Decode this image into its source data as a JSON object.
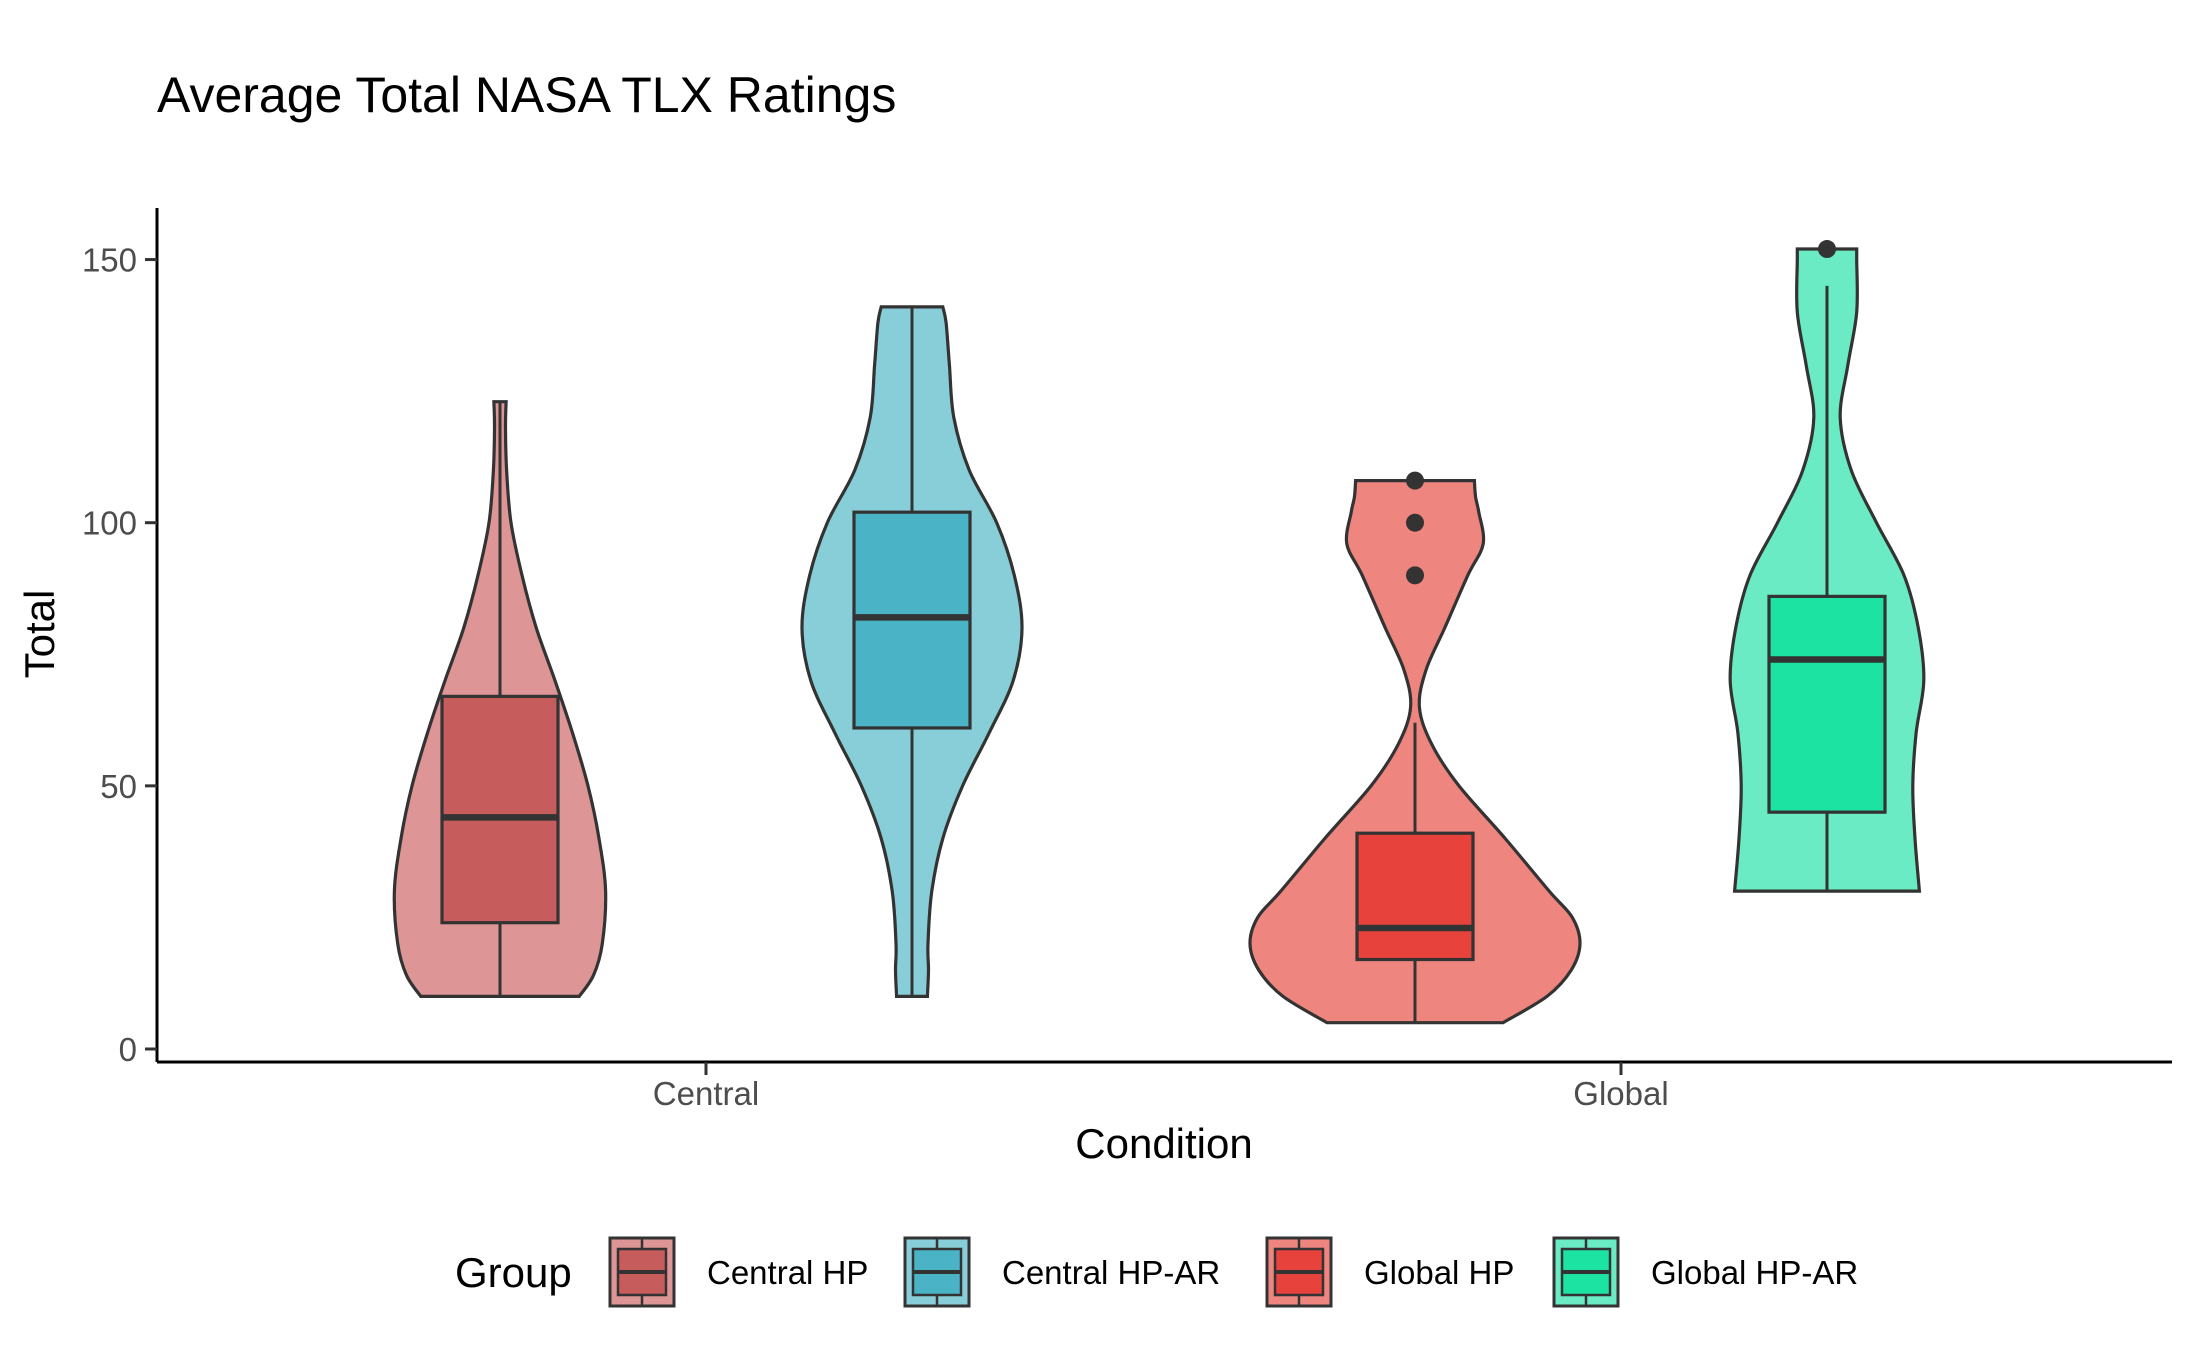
{
  "chart_data": {
    "type": "violin",
    "title": "Average Total NASA TLX Ratings",
    "xlabel": "Condition",
    "ylabel": "Total",
    "ylim": [
      0,
      160
    ],
    "yticks": [
      0,
      50,
      100,
      150
    ],
    "categories": [
      "Central",
      "Global"
    ],
    "grid": false,
    "legend": {
      "title": "Group",
      "position": "bottom",
      "entries": [
        "Central HP",
        "Central HP-AR",
        "Global HP",
        "Global HP-AR"
      ]
    },
    "series": [
      {
        "name": "Central HP",
        "category": "Central",
        "dodge": "left",
        "violin_color": "#dd9596",
        "box_color": "#c75c5c",
        "min": 10,
        "q1": 24,
        "median": 44,
        "q3": 67,
        "max": 123,
        "whisker_low": 10,
        "whisker_high": 123,
        "outliers": [],
        "density": [
          [
            10,
            0.72
          ],
          [
            14,
            0.85
          ],
          [
            20,
            0.93
          ],
          [
            30,
            0.96
          ],
          [
            40,
            0.9
          ],
          [
            50,
            0.8
          ],
          [
            60,
            0.66
          ],
          [
            70,
            0.5
          ],
          [
            80,
            0.33
          ],
          [
            90,
            0.2
          ],
          [
            100,
            0.1
          ],
          [
            110,
            0.06
          ],
          [
            118,
            0.05
          ],
          [
            123,
            0.055
          ]
        ]
      },
      {
        "name": "Central HP-AR",
        "category": "Central",
        "dodge": "right",
        "violin_color": "#88ced8",
        "box_color": "#4ab4c6",
        "min": 10,
        "q1": 61,
        "median": 82,
        "q3": 102,
        "max": 141,
        "whisker_low": 10,
        "whisker_high": 141,
        "outliers": [],
        "density": [
          [
            10,
            0.14
          ],
          [
            15,
            0.15
          ],
          [
            20,
            0.145
          ],
          [
            30,
            0.18
          ],
          [
            40,
            0.28
          ],
          [
            50,
            0.46
          ],
          [
            60,
            0.7
          ],
          [
            70,
            0.92
          ],
          [
            80,
            1.0
          ],
          [
            90,
            0.93
          ],
          [
            100,
            0.77
          ],
          [
            110,
            0.52
          ],
          [
            120,
            0.38
          ],
          [
            130,
            0.34
          ],
          [
            138,
            0.31
          ],
          [
            141,
            0.28
          ]
        ]
      },
      {
        "name": "Global HP",
        "category": "Global",
        "dodge": "left",
        "violin_color": "#ef857f",
        "box_color": "#e8423c",
        "min": 5,
        "q1": 17,
        "median": 23,
        "q3": 41,
        "max": 108,
        "whisker_low": 5,
        "whisker_high": 62,
        "outliers": [
          90,
          100,
          108
        ],
        "density": [
          [
            5,
            0.8
          ],
          [
            10,
            1.2
          ],
          [
            15,
            1.42
          ],
          [
            20,
            1.5
          ],
          [
            25,
            1.43
          ],
          [
            30,
            1.22
          ],
          [
            40,
            0.82
          ],
          [
            50,
            0.4
          ],
          [
            58,
            0.15
          ],
          [
            65,
            0.04
          ],
          [
            72,
            0.1
          ],
          [
            80,
            0.27
          ],
          [
            90,
            0.48
          ],
          [
            96,
            0.62
          ],
          [
            102,
            0.58
          ],
          [
            105,
            0.55
          ],
          [
            108,
            0.54
          ]
        ]
      },
      {
        "name": "Global HP-AR",
        "category": "Global",
        "dodge": "right",
        "violin_color": "#6aebc3",
        "box_color": "#1de3a2",
        "min": 30,
        "q1": 45,
        "median": 74,
        "q3": 86,
        "max": 152,
        "whisker_low": 30,
        "whisker_high": 145,
        "outliers": [
          152
        ],
        "density": [
          [
            30,
            0.84
          ],
          [
            40,
            0.8
          ],
          [
            50,
            0.78
          ],
          [
            60,
            0.81
          ],
          [
            70,
            0.88
          ],
          [
            80,
            0.83
          ],
          [
            90,
            0.7
          ],
          [
            100,
            0.45
          ],
          [
            110,
            0.22
          ],
          [
            120,
            0.12
          ],
          [
            130,
            0.19
          ],
          [
            140,
            0.27
          ],
          [
            150,
            0.27
          ],
          [
            152,
            0.27
          ]
        ]
      }
    ]
  }
}
